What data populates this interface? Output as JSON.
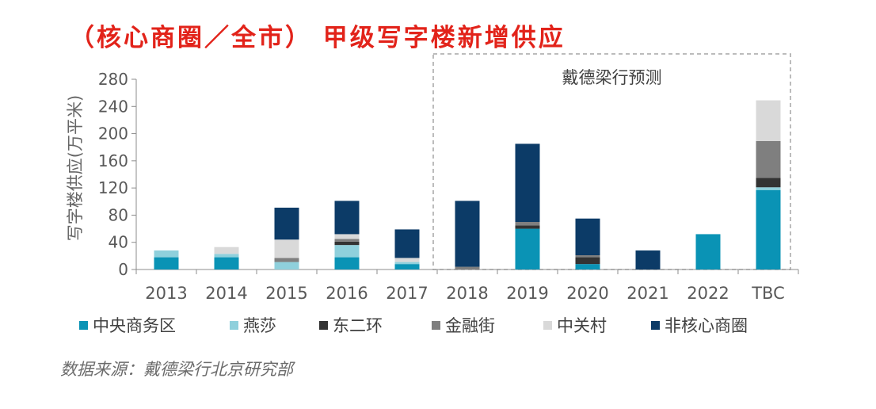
{
  "title": "（核心商圈／全市） 甲级写字楼新增供应",
  "source": "数据来源：戴德梁行北京研究部",
  "forecast_label": "戴德梁行预测",
  "chart_data": {
    "type": "bar",
    "stacked": true,
    "ylabel": "写字楼供应(万平米)",
    "ylim": [
      0,
      280
    ],
    "yticks": [
      0,
      40,
      80,
      120,
      160,
      200,
      240,
      280
    ],
    "categories": [
      "2013",
      "2014",
      "2015",
      "2016",
      "2017",
      "2018",
      "2019",
      "2020",
      "2021",
      "2022",
      "TBC"
    ],
    "forecast_start_index": 5,
    "legend_position": "bottom",
    "grid": false,
    "series": [
      {
        "name": "中央商务区",
        "color": "#0a93b5",
        "values": [
          18,
          18,
          0,
          18,
          8,
          0,
          60,
          8,
          0,
          52,
          117
        ]
      },
      {
        "name": "燕莎",
        "color": "#8fd0dc",
        "values": [
          10,
          5,
          11,
          18,
          3,
          0,
          0,
          0,
          0,
          0,
          4
        ]
      },
      {
        "name": "东二环",
        "color": "#333333",
        "values": [
          0,
          0,
          0,
          5,
          0,
          0,
          5,
          10,
          0,
          0,
          14
        ]
      },
      {
        "name": "金融街",
        "color": "#7f7f7f",
        "values": [
          0,
          0,
          6,
          4,
          0,
          4,
          5,
          3,
          0,
          0,
          54
        ]
      },
      {
        "name": "中关村",
        "color": "#d9d9d9",
        "values": [
          0,
          10,
          27,
          7,
          6,
          0,
          0,
          0,
          0,
          0,
          60
        ]
      },
      {
        "name": "非核心商圈",
        "color": "#0c3b67",
        "values": [
          0,
          0,
          47,
          49,
          42,
          97,
          115,
          54,
          28,
          0,
          0
        ]
      }
    ]
  }
}
